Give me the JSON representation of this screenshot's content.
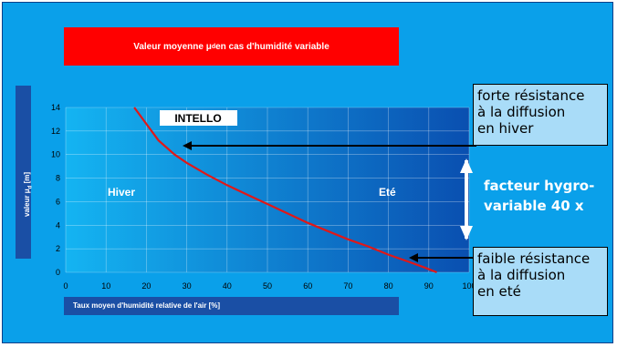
{
  "chart_data": {
    "type": "line",
    "title": "Valeur moyenne μ",
    "title_sub": "d",
    "title_rest": " en cas d'humidité variable",
    "ylabel": "valeur μ",
    "ylabel_sub": "d",
    "ylabel_rest": " [m]",
    "xlabel": "Taux moyen d'humidité relative de l'air [%]",
    "xlim": [
      0,
      100
    ],
    "ylim": [
      0,
      14
    ],
    "x_ticks": [
      0,
      10,
      20,
      30,
      40,
      50,
      60,
      70,
      80,
      90,
      100
    ],
    "y_ticks": [
      0,
      2,
      4,
      6,
      8,
      10,
      12,
      14
    ],
    "grid": true,
    "series": [
      {
        "name": "INTELLO",
        "color": "#e01818",
        "x": [
          17,
          20,
          23,
          27,
          30,
          35,
          40,
          45,
          50,
          55,
          60,
          65,
          70,
          75,
          80,
          85,
          89,
          92
        ],
        "y": [
          14,
          12.6,
          11.2,
          10.0,
          9.3,
          8.3,
          7.4,
          6.6,
          5.8,
          5.0,
          4.2,
          3.5,
          2.8,
          2.2,
          1.5,
          0.9,
          0.4,
          0.0
        ]
      }
    ],
    "annotations": {
      "hiver": "Hiver",
      "ete": "Eté",
      "product": "INTELLO"
    }
  },
  "callouts": {
    "top": [
      "forte résistance",
      "à la diffusion",
      "en hiver"
    ],
    "factor": [
      "facteur hygro-",
      "variable 40 x"
    ],
    "bottom": [
      "faible résistance",
      "à la diffusion",
      "en eté"
    ]
  },
  "colors": {
    "panel_bg": "#0aa0ea",
    "plot_left": "#14b4f2",
    "plot_right": "#0a4fb0",
    "title_bg": "#ff0000",
    "label_box_bg": "#1a4fa5",
    "callout_bg": "#a9dcf8",
    "curve": "#e01818"
  }
}
